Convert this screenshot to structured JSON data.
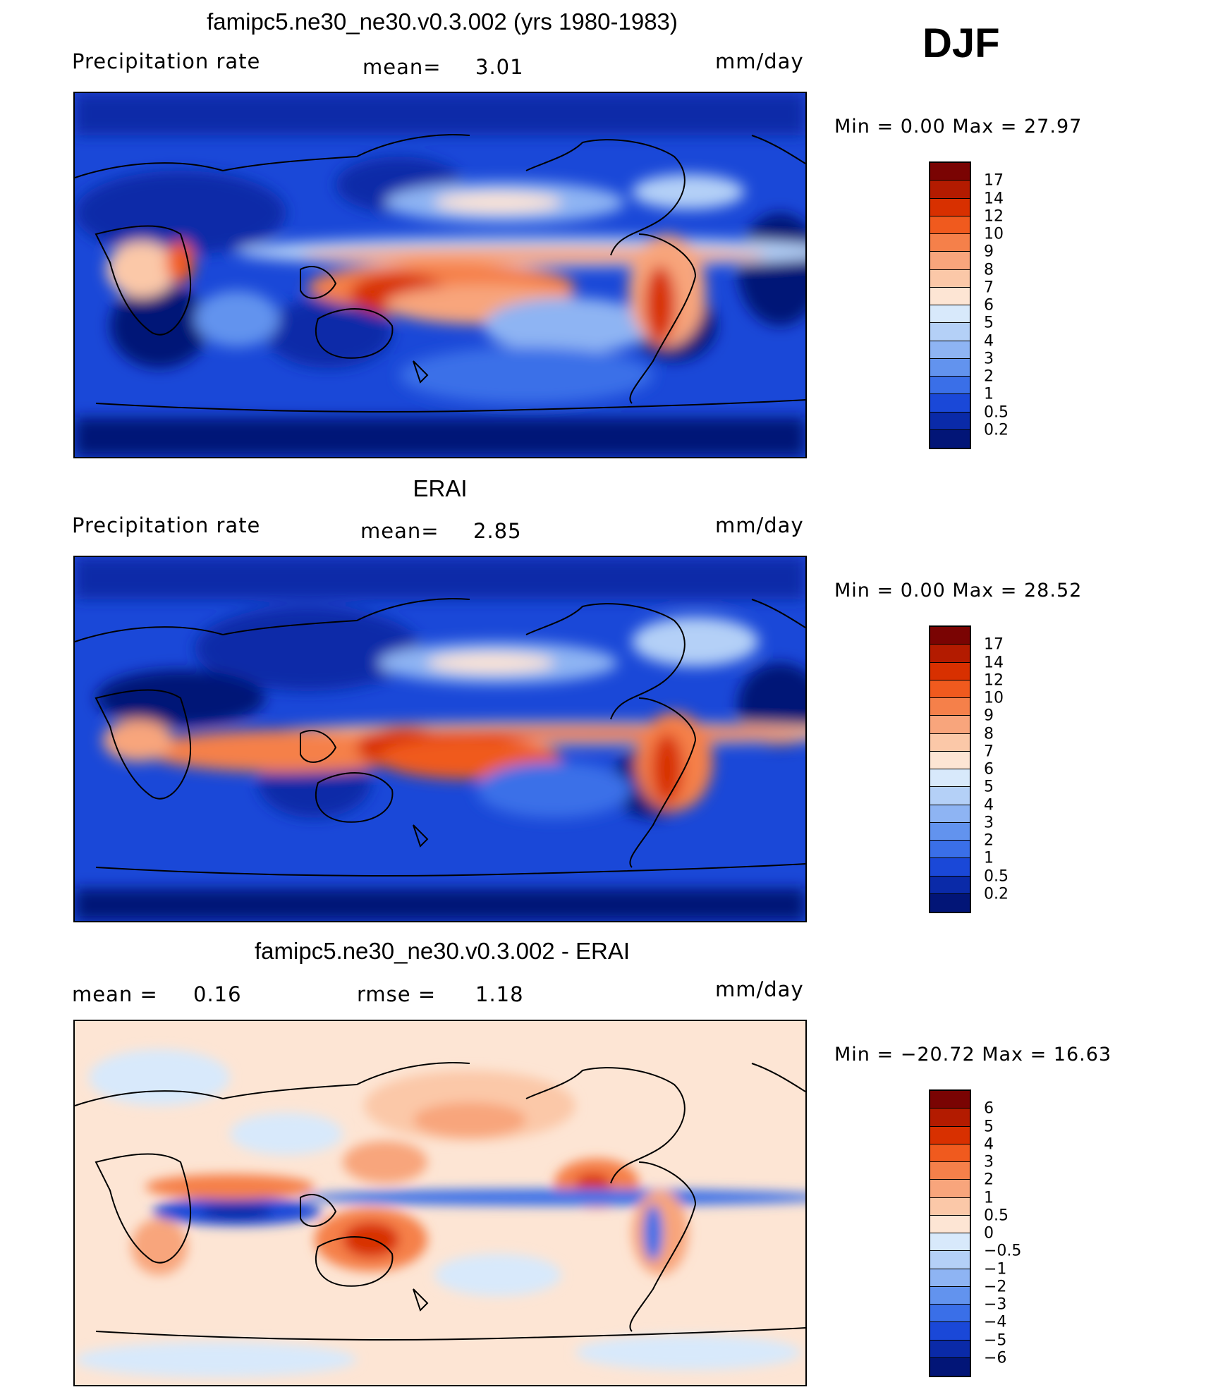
{
  "season": "DJF",
  "top": {
    "title": "famipc5.ne30_ne30.v0.3.002 (yrs 1980-1983)",
    "left": "Precipitation  rate",
    "center_label": "mean=",
    "center_value": "3.01",
    "units": "mm/day",
    "minmax": "Min  =      0.00  Max  =     27.97"
  },
  "mid": {
    "title": "ERAI",
    "left": "Precipitation  rate",
    "center_label": "mean=",
    "center_value": "2.85",
    "units": "mm/day",
    "minmax": "Min  =      0.00  Max  =     28.52"
  },
  "bottom": {
    "title": "famipc5.ne30_ne30.v0.3.002 - ERAI",
    "left_label": "mean  =",
    "left_value": "0.16",
    "center_label": "rmse  =",
    "center_value": "1.18",
    "units": "mm/day",
    "minmax": "Min  = −20.72  Max  =     16.63"
  },
  "precip_colorbar": {
    "labels": [
      "17",
      "14",
      "12",
      "10",
      "9",
      "8",
      "7",
      "6",
      "5",
      "4",
      "3",
      "2",
      "1",
      "0.5",
      "0.2"
    ],
    "colors": [
      "#7a0403",
      "#b31b00",
      "#d83000",
      "#f05a1e",
      "#f5804a",
      "#f8a57c",
      "#fbc8a8",
      "#fde5d4",
      "#d8e9fb",
      "#b4d0f7",
      "#8eb4f3",
      "#6293ee",
      "#3a6fe8",
      "#1a48d8",
      "#0a2aa8",
      "#021577"
    ]
  },
  "diff_colorbar": {
    "labels": [
      "6",
      "5",
      "4",
      "3",
      "2",
      "1",
      "0.5",
      "0",
      "−0.5",
      "−1",
      "−2",
      "−3",
      "−4",
      "−5",
      "−6"
    ],
    "colors": [
      "#7a0403",
      "#b31b00",
      "#d83000",
      "#f05a1e",
      "#f5804a",
      "#f8a57c",
      "#fbc8a8",
      "#fde5d4",
      "#d8e9fb",
      "#b4d0f7",
      "#8eb4f3",
      "#6293ee",
      "#3a6fe8",
      "#1a48d8",
      "#0a2aa8",
      "#021577"
    ]
  }
}
